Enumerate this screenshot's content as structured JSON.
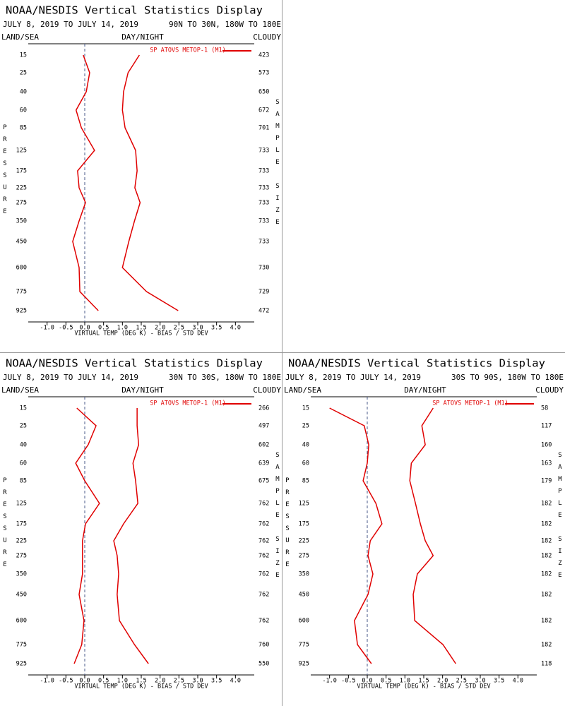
{
  "chart_data": [
    {
      "type": "line",
      "title": "NOAA/NESDIS Vertical Statistics Display",
      "date_range": "JULY 8, 2019 TO JULY 14, 2019",
      "region": "90N TO 30N, 180W TO 180E",
      "land_sea": "LAND/SEA",
      "day_night": "DAY/NIGHT",
      "cloudy": "CLOUDY",
      "y_label": "PRESSURE",
      "y2_label": "SAMPLE SIZE",
      "x_label": "VIRTUAL TEMP (DEG K) - BIAS / STD DEV",
      "categories": [
        15,
        25,
        40,
        60,
        85,
        125,
        175,
        225,
        275,
        350,
        450,
        600,
        775,
        925
      ],
      "sample_size": [
        423,
        573,
        650,
        672,
        701,
        733,
        733,
        733,
        733,
        733,
        733,
        730,
        729,
        472
      ],
      "series": [
        {
          "name": "SP ATOVS METOP-1 (M1)",
          "color": "#e00000",
          "bias": [
            -0.04,
            0.13,
            0.04,
            -0.23,
            -0.09,
            0.26,
            -0.19,
            -0.15,
            0.02,
            -0.15,
            -0.32,
            -0.15,
            -0.13,
            0.36
          ],
          "std_dev": [
            1.45,
            1.15,
            1.03,
            1.0,
            1.07,
            1.35,
            1.39,
            1.33,
            1.47,
            1.32,
            1.17,
            1.0,
            1.64,
            2.48
          ]
        }
      ],
      "xlim": [
        -1.5,
        4.5
      ],
      "reference_x": 0,
      "xticks": [
        {
          "value": -1,
          "label": "-1.0"
        },
        -0.5,
        {
          "value": 0,
          "label": "0.0"
        },
        0.5,
        {
          "value": 1,
          "label": "1.0"
        },
        1.5,
        {
          "value": 2,
          "label": "2.0"
        },
        2.5,
        {
          "value": 3,
          "label": "3.0"
        },
        3.5,
        {
          "value": 4,
          "label": "4.0"
        }
      ]
    },
    {
      "type": "line",
      "title": "NOAA/NESDIS Vertical Statistics Display",
      "date_range": "JULY 8, 2019 TO JULY 14, 2019",
      "region": "30N TO 30S, 180W TO 180E",
      "land_sea": "LAND/SEA",
      "day_night": "DAY/NIGHT",
      "cloudy": "CLOUDY",
      "y_label": "PRESSURE",
      "y2_label": "SAMPLE SIZE",
      "x_label": "VIRTUAL TEMP (DEG K) - BIAS / STD DEV",
      "categories": [
        15,
        25,
        40,
        60,
        85,
        125,
        175,
        225,
        275,
        350,
        450,
        600,
        775,
        925
      ],
      "sample_size": [
        266,
        497,
        602,
        639,
        675,
        762,
        762,
        762,
        762,
        762,
        762,
        762,
        760,
        550
      ],
      "series": [
        {
          "name": "SP ATOVS METOP-1 (M1)",
          "color": "#e00000",
          "bias": [
            -0.21,
            0.3,
            0.09,
            -0.24,
            0.0,
            0.39,
            0.02,
            -0.06,
            -0.06,
            -0.06,
            -0.15,
            -0.02,
            -0.08,
            -0.28
          ],
          "std_dev": [
            1.39,
            1.39,
            1.43,
            1.28,
            1.35,
            1.41,
            1.03,
            0.77,
            0.86,
            0.9,
            0.86,
            0.92,
            1.32,
            1.69
          ]
        }
      ],
      "xlim": [
        -1.5,
        4.5
      ],
      "reference_x": 0,
      "xticks": [
        {
          "value": -1,
          "label": "-1.0"
        },
        -0.5,
        {
          "value": 0,
          "label": "0.0"
        },
        0.5,
        {
          "value": 1,
          "label": "1.0"
        },
        1.5,
        {
          "value": 2,
          "label": "2.0"
        },
        2.5,
        {
          "value": 3,
          "label": "3.0"
        },
        3.5,
        {
          "value": 4,
          "label": "4.0"
        }
      ]
    },
    {
      "type": "line",
      "title": "NOAA/NESDIS Vertical Statistics Display",
      "date_range": "JULY 8, 2019 TO JULY 14, 2019",
      "region": "30S TO 90S, 180W TO 180E",
      "land_sea": "LAND/SEA",
      "day_night": "DAY/NIGHT",
      "cloudy": "CLOUDY",
      "y_label": "PRESSURE",
      "y2_label": "SAMPLE SIZE",
      "x_label": "VIRTUAL TEMP (DEG K) - BIAS / STD DEV",
      "categories": [
        15,
        25,
        40,
        60,
        85,
        125,
        175,
        225,
        275,
        350,
        450,
        600,
        775,
        925
      ],
      "sample_size": [
        58,
        117,
        160,
        163,
        179,
        182,
        182,
        182,
        182,
        182,
        182,
        182,
        182,
        118
      ],
      "series": [
        {
          "name": "SP ATOVS METOP-1 (M1)",
          "color": "#e00000",
          "bias": [
            -1.0,
            -0.08,
            0.04,
            0.0,
            -0.11,
            0.23,
            0.39,
            0.08,
            0.02,
            0.15,
            0.02,
            -0.34,
            -0.26,
            0.11
          ],
          "std_dev": [
            1.75,
            1.45,
            1.54,
            1.17,
            1.13,
            1.28,
            1.41,
            1.54,
            1.75,
            1.33,
            1.22,
            1.26,
            2.01,
            2.35
          ]
        }
      ],
      "xlim": [
        -1.5,
        4.5
      ],
      "reference_x": 0,
      "xticks": [
        {
          "value": -1,
          "label": "-1.0"
        },
        -0.5,
        {
          "value": 0,
          "label": "0.0"
        },
        0.5,
        {
          "value": 1,
          "label": "1.0"
        },
        1.5,
        {
          "value": 2,
          "label": "2.0"
        },
        2.5,
        {
          "value": 3,
          "label": "3.0"
        },
        3.5,
        {
          "value": 4,
          "label": "4.0"
        }
      ]
    }
  ]
}
